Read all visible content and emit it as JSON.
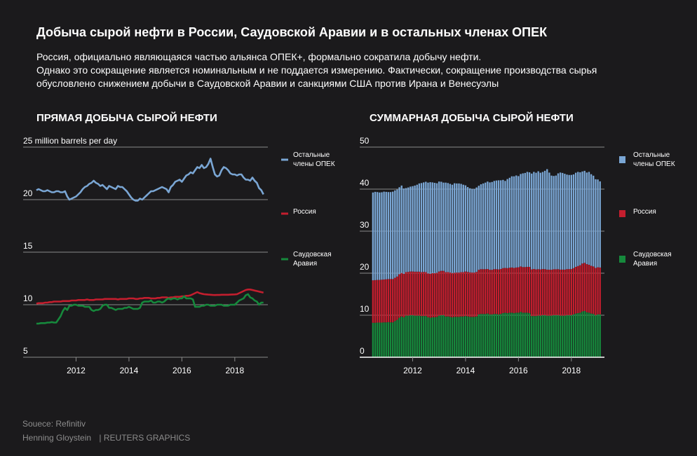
{
  "header": {
    "title": "Добыча сырой нефти в России, Саудовской Аравии и в остальных членах ОПЕК",
    "subtitle_lines": [
      "Россия, официально являющаяся частью альянса ОПЕК+, формально сократила добычу нефти.",
      "Однако это сокращение является номинальным и не поддается измерению. Фактически, сокращение производства сырья",
      "обусловлено снижением добычи в Саудовской Аравии и санкциями США против Ирана и Венесуэлы"
    ]
  },
  "footer": {
    "source": "Souece: Refinitiv",
    "author": "Henning Gloystein",
    "credit": "| REUTERS GRAPHICS"
  },
  "colors": {
    "background": "#1b1a1c",
    "opec": "#7aa6d4",
    "russia": "#c41e2e",
    "saudi": "#16893c",
    "grid": "#8a8a8a",
    "text": "#ffffff",
    "muted": "#8c8c8c"
  },
  "chart_data": [
    {
      "type": "line",
      "title": "ПРЯМАЯ ДОБЫЧА СЫРОЙ НЕФТИ",
      "ylabel": "million barrels per day",
      "ylim": [
        5,
        25
      ],
      "y_ticks": [
        "25",
        "20",
        "15",
        "10",
        "5"
      ],
      "x_ticks": [
        "2012",
        "2014",
        "2016",
        "2018"
      ],
      "xlim": [
        2010.0,
        2019.25
      ],
      "x_start": 2010.5,
      "x_step_years": 0.08333,
      "legend_position": "right",
      "series": [
        {
          "name": "Остальные члены ОПЕК",
          "color": "#7aa6d4",
          "values": [
            20.9,
            21.0,
            20.9,
            20.8,
            20.8,
            20.9,
            20.8,
            20.7,
            20.7,
            20.8,
            20.8,
            20.7,
            20.7,
            20.8,
            20.3,
            20.0,
            20.1,
            20.2,
            20.3,
            20.5,
            20.7,
            21.0,
            21.2,
            21.3,
            21.5,
            21.6,
            21.8,
            21.6,
            21.5,
            21.3,
            21.4,
            21.2,
            21.0,
            21.3,
            21.2,
            21.1,
            21.0,
            21.3,
            21.2,
            21.2,
            21.0,
            20.8,
            20.5,
            20.2,
            20.0,
            19.9,
            19.9,
            20.1,
            20.0,
            20.2,
            20.4,
            20.6,
            20.8,
            20.8,
            20.9,
            21.0,
            21.1,
            21.2,
            21.1,
            21.0,
            20.7,
            21.2,
            21.4,
            21.7,
            21.8,
            21.9,
            21.7,
            22.0,
            22.3,
            22.4,
            22.6,
            22.5,
            22.8,
            23.1,
            23.0,
            23.3,
            23.0,
            23.1,
            23.4,
            23.9,
            23.1,
            22.4,
            22.2,
            22.3,
            22.8,
            23.1,
            23.0,
            22.8,
            22.5,
            22.4,
            22.4,
            22.3,
            22.4,
            22.4,
            22.1,
            21.9,
            21.9,
            21.8,
            22.1,
            21.8,
            21.6,
            21.1,
            20.9,
            20.5
          ]
        },
        {
          "name": "Россия",
          "color": "#c41e2e",
          "values": [
            10.1,
            10.15,
            10.15,
            10.15,
            10.2,
            10.2,
            10.25,
            10.25,
            10.3,
            10.3,
            10.3,
            10.3,
            10.35,
            10.35,
            10.35,
            10.35,
            10.4,
            10.4,
            10.4,
            10.45,
            10.45,
            10.45,
            10.45,
            10.5,
            10.45,
            10.45,
            10.45,
            10.5,
            10.5,
            10.5,
            10.5,
            10.55,
            10.55,
            10.55,
            10.55,
            10.55,
            10.55,
            10.5,
            10.55,
            10.55,
            10.55,
            10.55,
            10.6,
            10.6,
            10.6,
            10.55,
            10.55,
            10.6,
            10.6,
            10.65,
            10.65,
            10.65,
            10.6,
            10.6,
            10.6,
            10.65,
            10.65,
            10.7,
            10.7,
            10.7,
            10.65,
            10.7,
            10.7,
            10.75,
            10.75,
            10.75,
            10.8,
            10.8,
            10.85,
            10.85,
            10.9,
            11.0,
            11.1,
            11.2,
            11.1,
            11.05,
            11.0,
            10.98,
            10.96,
            10.95,
            10.93,
            10.92,
            10.93,
            10.93,
            10.95,
            10.95,
            10.95,
            10.95,
            10.96,
            10.97,
            10.98,
            11.0,
            11.1,
            11.2,
            11.3,
            11.4,
            11.45,
            11.45,
            11.4,
            11.35,
            11.3,
            11.25,
            11.2,
            11.15
          ]
        },
        {
          "name": "Саудовская Аравия",
          "color": "#16893c",
          "values": [
            8.2,
            8.2,
            8.25,
            8.25,
            8.25,
            8.3,
            8.3,
            8.35,
            8.3,
            8.3,
            8.6,
            8.9,
            9.4,
            9.7,
            9.5,
            9.9,
            9.9,
            10.0,
            10.0,
            9.9,
            9.9,
            9.9,
            9.8,
            9.8,
            9.8,
            9.5,
            9.4,
            9.5,
            9.5,
            9.6,
            9.9,
            10.0,
            10.0,
            9.7,
            9.7,
            9.6,
            9.5,
            9.6,
            9.6,
            9.6,
            9.7,
            9.7,
            9.8,
            9.7,
            9.6,
            9.6,
            9.6,
            9.7,
            10.2,
            10.3,
            10.3,
            10.3,
            10.4,
            10.2,
            10.2,
            10.3,
            10.3,
            10.2,
            10.3,
            10.5,
            10.6,
            10.5,
            10.6,
            10.6,
            10.5,
            10.6,
            10.6,
            10.8,
            10.6,
            10.6,
            10.6,
            10.5,
            9.8,
            9.8,
            9.8,
            9.9,
            9.9,
            10.0,
            10.0,
            9.9,
            9.9,
            9.9,
            10.0,
            10.0,
            10.0,
            9.9,
            9.9,
            9.9,
            10.0,
            10.0,
            10.0,
            10.2,
            10.4,
            10.5,
            10.6,
            10.9,
            11.0,
            10.7,
            10.6,
            10.4,
            10.3,
            10.0,
            10.2,
            10.2
          ]
        }
      ]
    },
    {
      "type": "bar",
      "stacked": true,
      "title": "СУММАРНАЯ ДОБЫЧА СЫРОЙ НЕФТИ",
      "ylim": [
        0,
        50
      ],
      "y_ticks": [
        "50",
        "40",
        "30",
        "20",
        "10",
        "0"
      ],
      "x_ticks": [
        "2012",
        "2014",
        "2016",
        "2018"
      ],
      "legend_position": "right",
      "series_order": [
        "Саудовская Аравия",
        "Россия",
        "Остальные члены ОПЕК"
      ],
      "note": "stacked bars use the same monthly series as the line chart"
    }
  ]
}
